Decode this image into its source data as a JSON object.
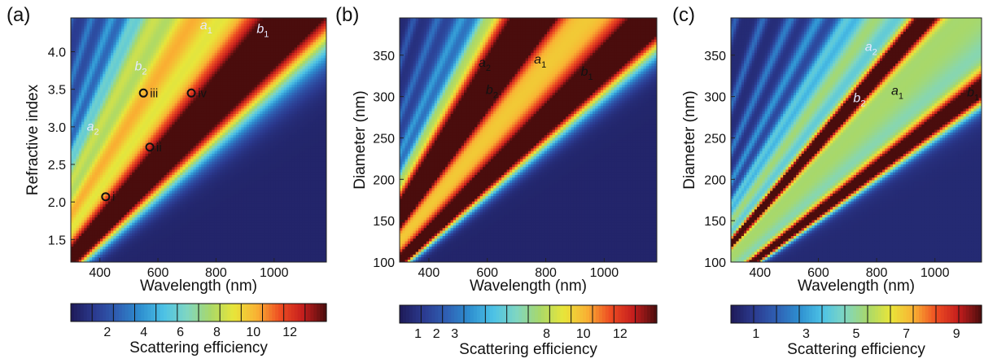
{
  "chart_data": [
    {
      "type": "heatmap",
      "panel_label": "(a)",
      "xlabel": "Wavelength (nm)",
      "ylabel": "Refractive index",
      "xlim": [
        300,
        1180
      ],
      "ylim": [
        1.2,
        4.45
      ],
      "xticks": [
        "400",
        "600",
        "800",
        "1000"
      ],
      "yticks": [
        "1.5",
        "2.0",
        "2.5",
        "3.0",
        "3.5",
        "4.0"
      ],
      "modes": [
        {
          "name": "b1",
          "base": "b",
          "sub": "1",
          "slope": 245,
          "peak": 13.0,
          "width": 0.18,
          "label_x": 940,
          "label_y": 4.25
        },
        {
          "name": "a1",
          "base": "a",
          "sub": "1",
          "slope": 190,
          "peak": 5.5,
          "width": 0.45,
          "label_x": 745,
          "label_y": 4.3
        },
        {
          "name": "b2",
          "base": "b",
          "sub": "2",
          "slope": 160,
          "peak": 4.5,
          "width": 0.12,
          "label_x": 520,
          "label_y": 3.75
        },
        {
          "name": "a2",
          "base": "a",
          "sub": "2",
          "slope": 130,
          "peak": 4.0,
          "width": 0.09,
          "label_x": 355,
          "label_y": 2.95
        }
      ],
      "markers": [
        {
          "label": "i",
          "x": 420,
          "y": 2.07
        },
        {
          "label": "ii",
          "x": 572,
          "y": 2.73
        },
        {
          "label": "iii",
          "x": 550,
          "y": 3.45
        },
        {
          "label": "iv",
          "x": 715,
          "y": 3.45
        }
      ],
      "colorbar": {
        "label": "Scattering efficiency",
        "ticks": [
          "2",
          "4",
          "6",
          "8",
          "10",
          "12"
        ],
        "tick_values": [
          2,
          4,
          6,
          8,
          10,
          12
        ],
        "vmin": 0,
        "vmax": 14
      }
    },
    {
      "type": "heatmap",
      "panel_label": "(b)",
      "xlabel": "Wavelength (nm)",
      "ylabel": "Diameter (nm)",
      "xlim": [
        300,
        1180
      ],
      "ylim": [
        100,
        395
      ],
      "xticks": [
        "400",
        "600",
        "800",
        "1000"
      ],
      "yticks": [
        "100",
        "150",
        "200",
        "250",
        "300",
        "350"
      ],
      "modes": [
        {
          "name": "b1",
          "base": "b",
          "sub": "1",
          "slope": 3.0,
          "peak": 14.0,
          "width": 0.11,
          "label_x": 920,
          "label_y": 325
        },
        {
          "name": "a1",
          "base": "a",
          "sub": "1",
          "slope": 2.25,
          "peak": 9.0,
          "width": 0.33,
          "label_x": 760,
          "label_y": 340
        },
        {
          "name": "b2",
          "base": "b",
          "sub": "2",
          "slope": 1.95,
          "peak": 12.0,
          "width": 0.09,
          "label_x": 595,
          "label_y": 303
        },
        {
          "name": "a2",
          "base": "a",
          "sub": "2",
          "slope": 1.7,
          "peak": 6.0,
          "width": 0.1,
          "label_x": 570,
          "label_y": 336
        }
      ],
      "markers": [],
      "colorbar": {
        "label": "Scattering efficiency",
        "ticks": [
          "1",
          "2",
          "3",
          "8",
          "10",
          "12"
        ],
        "tick_values": [
          1,
          2,
          3,
          8,
          10,
          12
        ],
        "vmin": 0,
        "vmax": 14
      }
    },
    {
      "type": "heatmap",
      "panel_label": "(c)",
      "xlabel": "Wavelength (nm)",
      "ylabel": "Diameter (nm)",
      "xlim": [
        300,
        1160
      ],
      "ylim": [
        100,
        395
      ],
      "xticks": [
        "400",
        "600",
        "800",
        "1000"
      ],
      "yticks": [
        "100",
        "150",
        "200",
        "250",
        "300",
        "350"
      ],
      "modes": [
        {
          "name": "b1",
          "base": "b",
          "sub": "1",
          "slope": 3.75,
          "peak": 10.0,
          "width": 0.07,
          "label_x": 1110,
          "label_y": 300
        },
        {
          "name": "a1",
          "base": "a",
          "sub": "1",
          "slope": 2.85,
          "peak": 5.0,
          "width": 0.3,
          "label_x": 850,
          "label_y": 302
        },
        {
          "name": "b2",
          "base": "b",
          "sub": "2",
          "slope": 2.45,
          "peak": 9.0,
          "width": 0.05,
          "label_x": 720,
          "label_y": 293
        },
        {
          "name": "a2",
          "base": "a",
          "sub": "2",
          "slope": 2.0,
          "peak": 3.0,
          "width": 0.08,
          "label_x": 760,
          "label_y": 355
        }
      ],
      "markers": [],
      "colorbar": {
        "label": "Scattering efficiency",
        "ticks": [
          "1",
          "3",
          "5",
          "7",
          "9"
        ],
        "tick_values": [
          1,
          3,
          5,
          7,
          9
        ],
        "vmin": 0,
        "vmax": 10
      }
    }
  ],
  "colormap": [
    "#1e1a57",
    "#2b3a8f",
    "#2f5fb3",
    "#2e8fd0",
    "#4cc2e6",
    "#7fd6c2",
    "#a8d86a",
    "#e8e63a",
    "#f9b233",
    "#ee4d22",
    "#c41d1d",
    "#4a0d0d"
  ]
}
